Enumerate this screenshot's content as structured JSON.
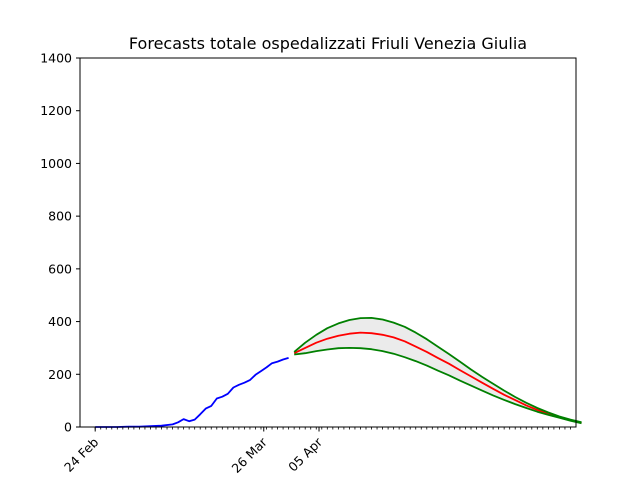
{
  "chart_data": {
    "type": "line",
    "title": "Forecasts totale ospedalizzati Friuli Venezia Giulia",
    "xlabel": "",
    "ylabel": "",
    "ylim": [
      0,
      1400
    ],
    "y_ticks": [
      0,
      200,
      400,
      600,
      800,
      1000,
      1200,
      1400
    ],
    "xlim": [
      -5.5,
      174
    ],
    "x_tick_labels": [
      {
        "x": 0,
        "label": "24 Feb"
      },
      {
        "x": 61,
        "label": "26 Mar"
      },
      {
        "x": 81,
        "label": "05 Apr"
      }
    ],
    "minor_tick_spacing_days": 2,
    "x_unit": "days from 24 Feb",
    "legend": "none",
    "grid": false,
    "series": [
      {
        "color": "#0000ff",
        "points": [
          [
            0,
            0
          ],
          [
            4,
            0
          ],
          [
            8,
            0
          ],
          [
            12,
            1
          ],
          [
            16,
            1
          ],
          [
            20,
            3
          ],
          [
            24,
            5
          ],
          [
            28,
            10
          ],
          [
            30,
            18
          ],
          [
            32,
            30
          ],
          [
            34,
            22
          ],
          [
            36,
            28
          ],
          [
            38,
            48
          ],
          [
            40,
            70
          ],
          [
            42,
            80
          ],
          [
            44,
            108
          ],
          [
            46,
            115
          ],
          [
            48,
            126
          ],
          [
            50,
            150
          ],
          [
            52,
            160
          ],
          [
            54,
            168
          ],
          [
            56,
            178
          ],
          [
            58,
            198
          ],
          [
            60,
            212
          ],
          [
            62,
            226
          ],
          [
            64,
            242
          ],
          [
            66,
            248
          ],
          [
            68,
            256
          ],
          [
            70,
            262
          ]
        ]
      },
      {
        "color": "#ff0000",
        "points": [
          [
            72,
            280
          ],
          [
            76,
            300
          ],
          [
            80,
            320
          ],
          [
            84,
            335
          ],
          [
            88,
            346
          ],
          [
            92,
            354
          ],
          [
            96,
            358
          ],
          [
            100,
            356
          ],
          [
            104,
            350
          ],
          [
            108,
            340
          ],
          [
            112,
            325
          ],
          [
            116,
            305
          ],
          [
            120,
            285
          ],
          [
            124,
            262
          ],
          [
            128,
            240
          ],
          [
            132,
            216
          ],
          [
            136,
            192
          ],
          [
            140,
            168
          ],
          [
            144,
            145
          ],
          [
            148,
            122
          ],
          [
            152,
            102
          ],
          [
            156,
            82
          ],
          [
            160,
            65
          ],
          [
            164,
            50
          ],
          [
            168,
            38
          ],
          [
            172,
            26
          ],
          [
            176,
            15
          ]
        ]
      },
      {
        "color": "#008000",
        "points": [
          [
            72,
            285
          ],
          [
            76,
            320
          ],
          [
            80,
            350
          ],
          [
            84,
            375
          ],
          [
            88,
            393
          ],
          [
            92,
            406
          ],
          [
            96,
            413
          ],
          [
            100,
            414
          ],
          [
            104,
            408
          ],
          [
            108,
            396
          ],
          [
            112,
            380
          ],
          [
            116,
            358
          ],
          [
            120,
            333
          ],
          [
            124,
            305
          ],
          [
            128,
            277
          ],
          [
            132,
            248
          ],
          [
            136,
            218
          ],
          [
            140,
            190
          ],
          [
            144,
            164
          ],
          [
            148,
            138
          ],
          [
            152,
            114
          ],
          [
            156,
            92
          ],
          [
            160,
            72
          ],
          [
            164,
            55
          ],
          [
            168,
            40
          ],
          [
            172,
            28
          ],
          [
            176,
            18
          ]
        ]
      },
      {
        "color": "#008000",
        "points": [
          [
            72,
            275
          ],
          [
            76,
            280
          ],
          [
            80,
            288
          ],
          [
            84,
            294
          ],
          [
            88,
            299
          ],
          [
            92,
            300
          ],
          [
            96,
            299
          ],
          [
            100,
            295
          ],
          [
            104,
            288
          ],
          [
            108,
            278
          ],
          [
            112,
            265
          ],
          [
            116,
            250
          ],
          [
            120,
            233
          ],
          [
            124,
            214
          ],
          [
            128,
            196
          ],
          [
            132,
            176
          ],
          [
            136,
            157
          ],
          [
            140,
            138
          ],
          [
            144,
            120
          ],
          [
            148,
            103
          ],
          [
            152,
            87
          ],
          [
            156,
            72
          ],
          [
            160,
            58
          ],
          [
            164,
            46
          ],
          [
            168,
            35
          ],
          [
            172,
            24
          ],
          [
            176,
            14
          ]
        ]
      }
    ],
    "band": {
      "fill": "#ebebeb",
      "between": [
        2,
        3
      ]
    }
  }
}
